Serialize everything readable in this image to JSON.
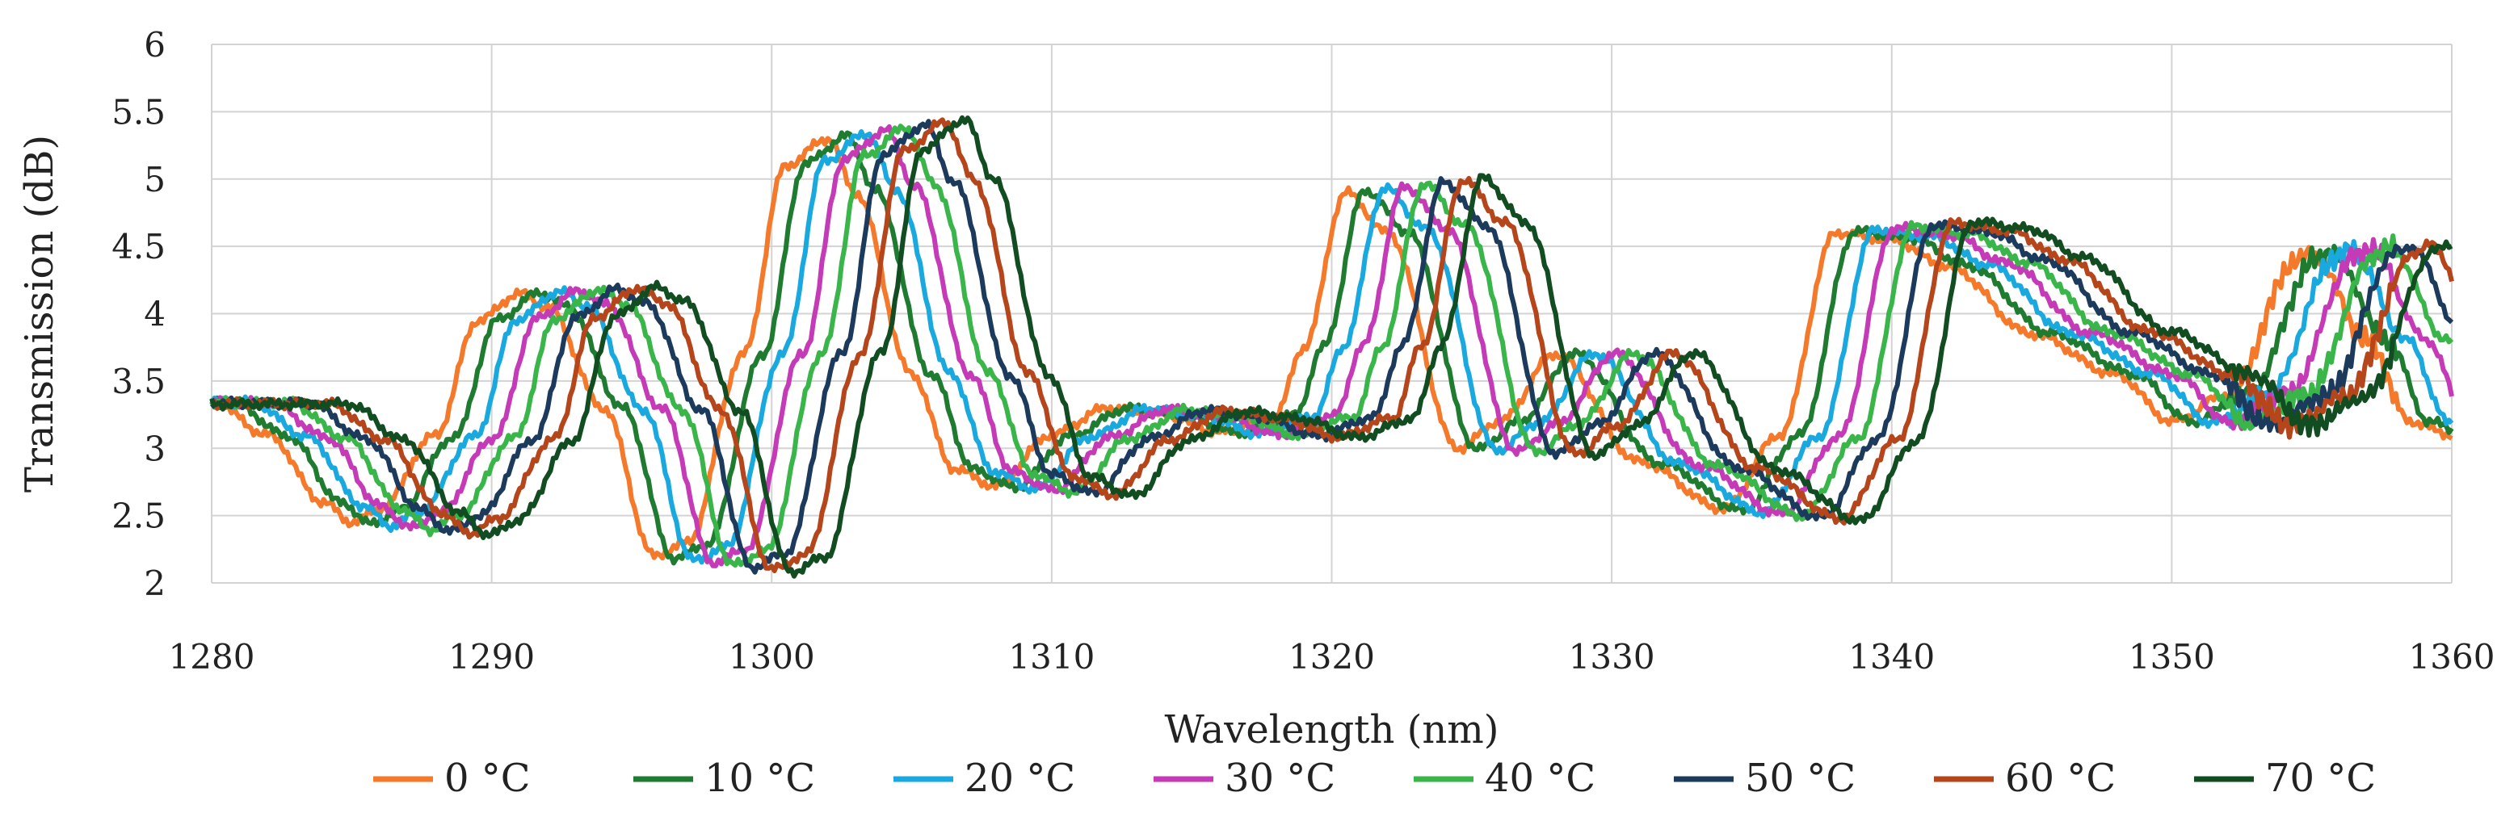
{
  "chart_data": {
    "type": "line",
    "title": "",
    "xlabel": "Wavelength (nm)",
    "ylabel": "Transmission (dB)",
    "xlim": [
      1280,
      1360
    ],
    "ylim": [
      2,
      6
    ],
    "xticks": [
      1280,
      1290,
      1300,
      1310,
      1320,
      1330,
      1340,
      1350,
      1360
    ],
    "yticks": [
      2,
      2.5,
      3,
      3.5,
      4,
      4.5,
      5,
      5.5,
      6
    ],
    "ytick_labels": [
      "2",
      "2.5",
      "3",
      "3.5",
      "4",
      "4.5",
      "5",
      "5.5",
      "6"
    ],
    "grid": true,
    "legend_position": "bottom",
    "series": [
      {
        "name": "0 °C",
        "color": "#F4792B",
        "shift": 0,
        "x": [
          1280,
          1282,
          1284,
          1285,
          1286,
          1288,
          1289.5,
          1291,
          1292,
          1294,
          1295.8,
          1297,
          1299,
          1300.5,
          1302,
          1303,
          1305,
          1306.5,
          1308,
          1310,
          1312,
          1314,
          1316,
          1318,
          1319,
          1320.5,
          1322,
          1324.5,
          1326,
          1328,
          1331,
          1334,
          1336,
          1338,
          1340,
          1342,
          1345,
          1348,
          1350,
          1352,
          1354.5,
          1355,
          1357,
          1358.5,
          1360
        ],
        "y": [
          3.35,
          3.1,
          2.6,
          2.45,
          2.55,
          3.1,
          3.95,
          4.15,
          4.05,
          3.3,
          2.2,
          2.3,
          3.7,
          5.1,
          5.3,
          4.9,
          3.55,
          2.85,
          2.72,
          3.1,
          3.3,
          3.25,
          3.12,
          3.25,
          3.75,
          4.9,
          4.6,
          3.0,
          3.2,
          3.7,
          2.9,
          2.55,
          3.1,
          4.6,
          4.55,
          4.35,
          3.85,
          3.55,
          3.2,
          3.4,
          4.4,
          4.45,
          3.8,
          3.2,
          3.1
        ]
      },
      {
        "name": "10 °C",
        "color": "#1E7B30",
        "shift": 0.7,
        "x": [],
        "y": []
      },
      {
        "name": "20 °C",
        "color": "#19A9DF",
        "shift": 1.4,
        "x": [],
        "y": []
      },
      {
        "name": "30 °C",
        "color": "#C53AB6",
        "shift": 2.1,
        "x": [],
        "y": []
      },
      {
        "name": "40 °C",
        "color": "#39B54A",
        "shift": 2.8,
        "x": [],
        "y": []
      },
      {
        "name": "50 °C",
        "color": "#1B3A5C",
        "shift": 3.5,
        "x": [],
        "y": []
      },
      {
        "name": "60 °C",
        "color": "#B5451B",
        "shift": 4.2,
        "x": [],
        "y": []
      },
      {
        "name": "70 °C",
        "color": "#124D22",
        "shift": 4.9,
        "x": [],
        "y": []
      }
    ]
  }
}
